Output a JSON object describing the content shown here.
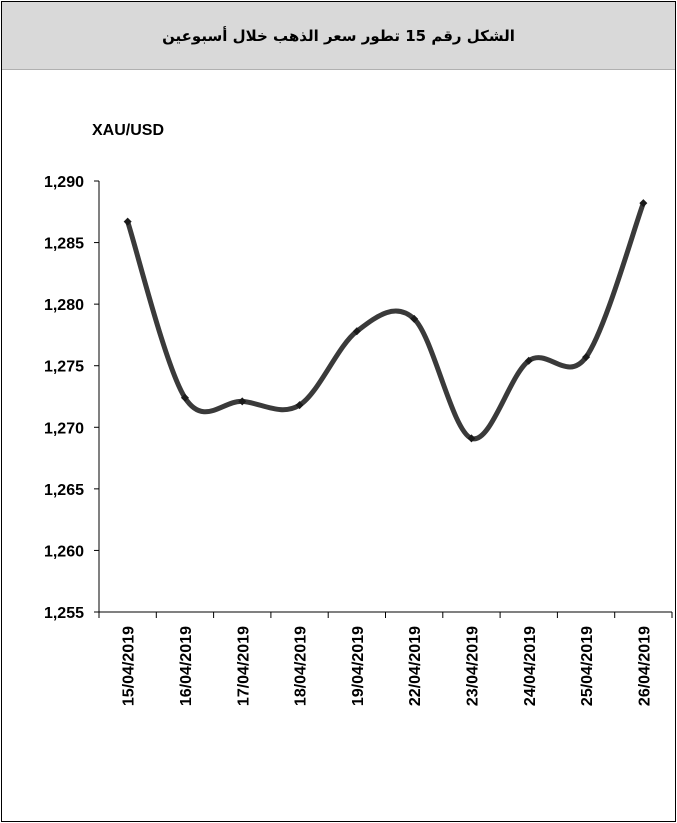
{
  "header": {
    "title": "الشكل رقم 15 تطور سعر الذهب خلال أسبوعين"
  },
  "chart_data": {
    "type": "line",
    "title": "الشكل رقم 15 تطور سعر الذهب خلال أسبوعين",
    "ylabel": "XAU/USD",
    "xlabel": "",
    "ylim": [
      1255,
      1290
    ],
    "yticks": [
      1255,
      1260,
      1265,
      1270,
      1275,
      1280,
      1285,
      1290
    ],
    "ytick_labels": [
      "1,255",
      "1,260",
      "1,265",
      "1,270",
      "1,275",
      "1,280",
      "1,285",
      "1,290"
    ],
    "categories": [
      "15/04/2019",
      "16/04/2019",
      "17/04/2019",
      "18/04/2019",
      "19/04/2019",
      "22/04/2019",
      "23/04/2019",
      "24/04/2019",
      "25/04/2019",
      "26/04/2019"
    ],
    "series": [
      {
        "values": [
          1286.7,
          1272.4,
          1272.1,
          1271.8,
          1277.8,
          1278.8,
          1269.1,
          1275.4,
          1275.7,
          1288.2
        ]
      }
    ],
    "grid": false,
    "line_color": "#3a3a3a",
    "smooth": true
  }
}
